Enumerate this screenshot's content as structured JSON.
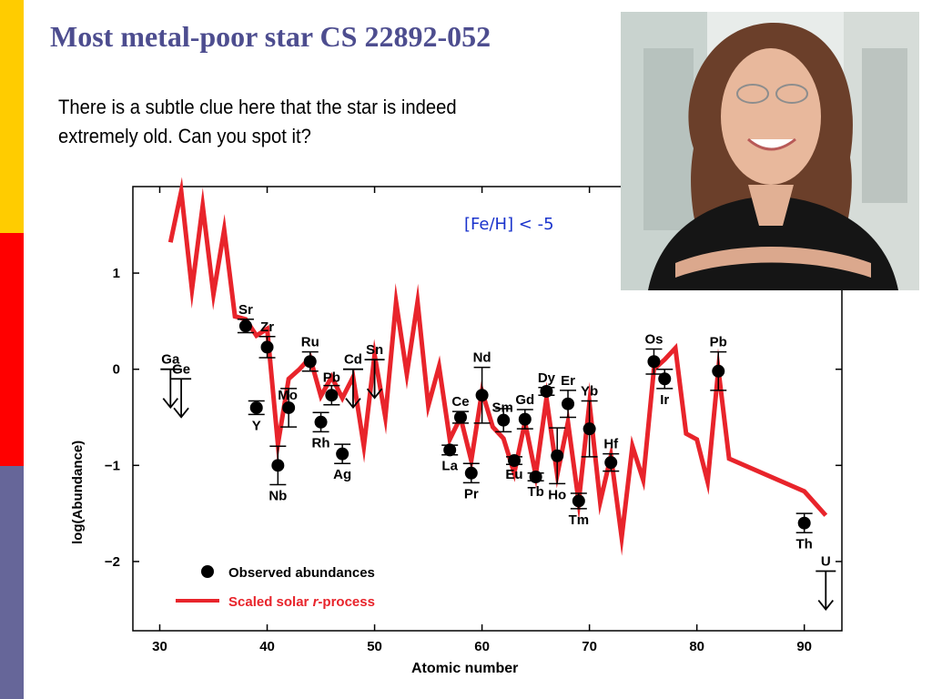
{
  "slide": {
    "title": "Most metal-poor star CS 22892-052",
    "text": "There is a subtle clue here that the star is indeed extremely old. Can you spot it?",
    "accent_colors": [
      "#ffcc00",
      "#ff0000",
      "#666699"
    ],
    "title_color": "#4d4d8f"
  },
  "photo": {
    "icon": "portrait-photo"
  },
  "chart_data": {
    "type": "scatter",
    "xlabel": "Atomic number",
    "ylabel": "log(Abundance)",
    "xlim": [
      27.5,
      93.5
    ],
    "ylim": [
      -2.72,
      1.9
    ],
    "x_ticks": [
      30,
      40,
      50,
      60,
      70,
      80,
      90
    ],
    "y_ticks": [
      1,
      0,
      -1,
      -2
    ],
    "y_tick_labels": [
      "1",
      "0",
      "−1",
      "−2"
    ],
    "annotation": "[Fe/H] < -5",
    "legend": {
      "position": "bottom-left",
      "observed_label": "Observed abundances",
      "solar_label_prefix": "Scaled solar ",
      "solar_label_italic": "r",
      "solar_label_suffix": "-process"
    },
    "colors": {
      "solar": "#e8242b",
      "observed": "#000000",
      "annotation": "#1a33cc"
    },
    "series": [
      {
        "name": "Observed abundances",
        "points": [
          {
            "x": 38,
            "y": 0.45,
            "err": 0.07,
            "label": "Sr"
          },
          {
            "x": 39,
            "y": -0.4,
            "err": 0.07,
            "label": "Y"
          },
          {
            "x": 40,
            "y": 0.23,
            "err": 0.11,
            "label": "Zr"
          },
          {
            "x": 41,
            "y": -1.0,
            "err": 0.2,
            "label": "Nb"
          },
          {
            "x": 42,
            "y": -0.4,
            "err": 0.2,
            "label": "Mo"
          },
          {
            "x": 44,
            "y": 0.08,
            "err": 0.1,
            "label": "Ru"
          },
          {
            "x": 45,
            "y": -0.55,
            "err": 0.1,
            "label": "Rh"
          },
          {
            "x": 46,
            "y": -0.27,
            "err": 0.1,
            "label": "Pb"
          },
          {
            "x": 47,
            "y": -0.88,
            "err": 0.1,
            "label": "Ag"
          },
          {
            "x": 57,
            "y": -0.84,
            "err": 0.05,
            "label": "La"
          },
          {
            "x": 58,
            "y": -0.5,
            "err": 0.06,
            "label": "Ce"
          },
          {
            "x": 59,
            "y": -1.08,
            "err": 0.1,
            "label": "Pr"
          },
          {
            "x": 60,
            "y": -0.27,
            "err": 0.29,
            "label": "Nd"
          },
          {
            "x": 62,
            "y": -0.53,
            "err": 0.12,
            "label": "Sm"
          },
          {
            "x": 63,
            "y": -0.95,
            "err": 0.04,
            "label": "Eu"
          },
          {
            "x": 64,
            "y": -0.52,
            "err": 0.1,
            "label": "Gd"
          },
          {
            "x": 65,
            "y": -1.12,
            "err": 0.04,
            "label": "Tb"
          },
          {
            "x": 66,
            "y": -0.23,
            "err": 0.04,
            "label": "Dy"
          },
          {
            "x": 67,
            "y": -0.9,
            "err": 0.29,
            "label": "Ho"
          },
          {
            "x": 68,
            "y": -0.36,
            "err": 0.14,
            "label": "Er"
          },
          {
            "x": 69,
            "y": -1.37,
            "err": 0.08,
            "label": "Tm"
          },
          {
            "x": 70,
            "y": -0.62,
            "err": 0.29,
            "label": "Yb"
          },
          {
            "x": 72,
            "y": -0.97,
            "err": 0.09,
            "label": "Hf"
          },
          {
            "x": 76,
            "y": 0.08,
            "err": 0.13,
            "label": "Os"
          },
          {
            "x": 77,
            "y": -0.1,
            "err": 0.1,
            "label": "Ir"
          },
          {
            "x": 82,
            "y": -0.02,
            "err": 0.2,
            "label": "Pb"
          },
          {
            "x": 90,
            "y": -1.6,
            "err": 0.1,
            "label": "Th"
          }
        ]
      },
      {
        "name": "Scaled solar r-process",
        "x": [
          31,
          32,
          33,
          34,
          35,
          36,
          37,
          38,
          39,
          40,
          41,
          42,
          43,
          44,
          45,
          46,
          47,
          48,
          49,
          50,
          51,
          52,
          53,
          54,
          55,
          56,
          57,
          58,
          59,
          60,
          61,
          62,
          63,
          64,
          65,
          66,
          67,
          68,
          69,
          70,
          71,
          72,
          73,
          74,
          75,
          76,
          77,
          78,
          79,
          80,
          81,
          82,
          83,
          90,
          92
        ],
        "y": [
          1.32,
          1.85,
          0.83,
          1.7,
          0.78,
          1.45,
          0.55,
          0.52,
          0.35,
          0.42,
          -0.78,
          -0.1,
          0.0,
          0.12,
          -0.28,
          -0.08,
          -0.3,
          -0.08,
          -0.8,
          0.15,
          -0.5,
          0.7,
          -0.05,
          0.7,
          -0.38,
          0.03,
          -0.73,
          -0.5,
          -0.95,
          -0.23,
          -0.6,
          -0.72,
          -1.08,
          -0.55,
          -1.1,
          -0.3,
          -1.1,
          -0.55,
          -1.38,
          -0.35,
          -1.38,
          -0.9,
          -1.75,
          -0.8,
          -1.15,
          0.0,
          0.1,
          0.22,
          -0.67,
          -0.73,
          -1.17,
          0.0,
          -0.93,
          -1.27,
          -1.52
        ]
      }
    ],
    "upper_limits": [
      {
        "x": 31,
        "y": 0.0,
        "label": "Ga"
      },
      {
        "x": 32,
        "y": -0.1,
        "label": "Ge"
      },
      {
        "x": 48,
        "y": 0.0,
        "label": "Cd"
      },
      {
        "x": 50,
        "y": 0.1,
        "label": "Sn"
      },
      {
        "x": 92,
        "y": -2.1,
        "label": "U"
      }
    ]
  }
}
